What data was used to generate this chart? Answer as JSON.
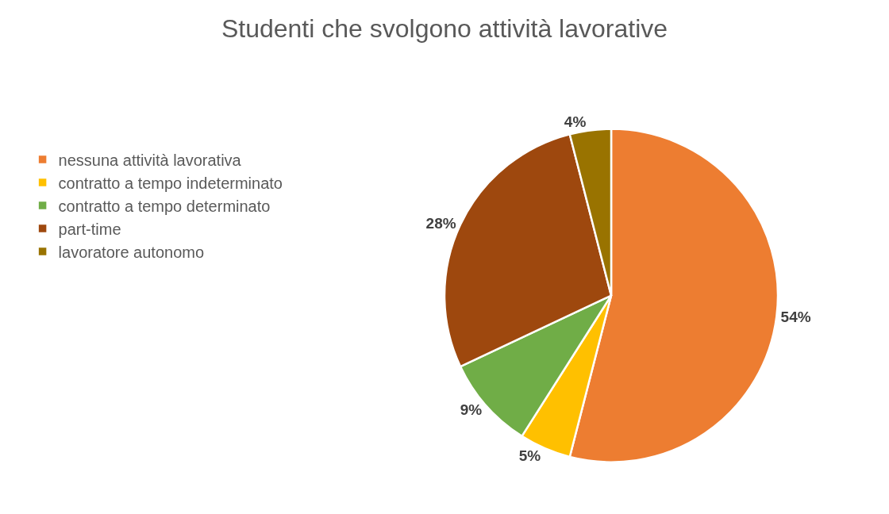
{
  "chart_data": {
    "type": "pie",
    "title": "Studenti che svolgono attività lavorative",
    "categories": [
      "nessuna attività lavorativa",
      "contratto a tempo indeterminato",
      "contratto a tempo determinato",
      "part-time",
      "lavoratore autonomo"
    ],
    "values": [
      54,
      5,
      9,
      28,
      4
    ],
    "value_labels": [
      "54%",
      "5%",
      "9%",
      "28%",
      "4%"
    ],
    "colors": [
      "#ed7d31",
      "#ffc000",
      "#70ad47",
      "#9e480e",
      "#997300"
    ],
    "legend": "left"
  }
}
